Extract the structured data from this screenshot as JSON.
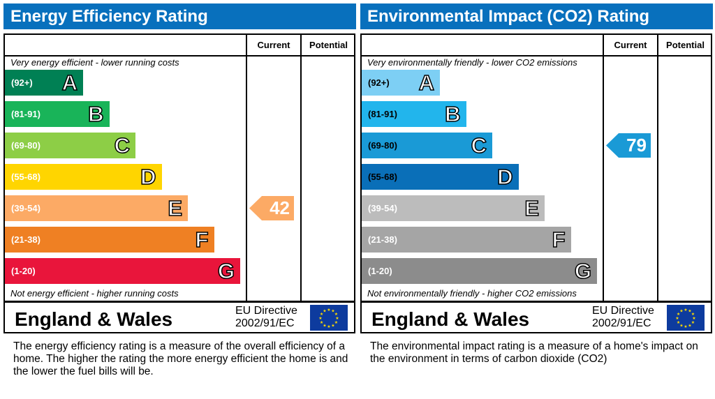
{
  "chart_data": [
    {
      "type": "bar",
      "title": "Energy Efficiency Rating",
      "top_note": "Very energy efficient - lower running costs",
      "bottom_note": "Not energy efficient - higher running costs",
      "columns": [
        "Current",
        "Potential"
      ],
      "bands": [
        {
          "range": "(92+)",
          "letter": "A",
          "color": "#008054"
        },
        {
          "range": "(81-91)",
          "letter": "B",
          "color": "#19b459"
        },
        {
          "range": "(69-80)",
          "letter": "C",
          "color": "#8dce46"
        },
        {
          "range": "(55-68)",
          "letter": "D",
          "color": "#ffd500"
        },
        {
          "range": "(39-54)",
          "letter": "E",
          "color": "#fcaa65"
        },
        {
          "range": "(21-38)",
          "letter": "F",
          "color": "#ef8023"
        },
        {
          "range": "(1-20)",
          "letter": "G",
          "color": "#e9153b"
        }
      ],
      "current": {
        "value": "42",
        "band": "E",
        "color": "#fcaa65"
      },
      "potential": null,
      "region": "England & Wales",
      "directive": [
        "EU Directive",
        "2002/91/EC"
      ],
      "description": "The energy efficiency rating is a measure of the overall efficiency of a home.  The higher the rating the more energy efficient the home is and the lower the fuel bills will be."
    },
    {
      "type": "bar",
      "title": "Environmental Impact (CO2) Rating",
      "top_note": "Very environmentally friendly - lower CO2 emissions",
      "bottom_note": "Not environmentally friendly - higher CO2 emissions",
      "columns": [
        "Current",
        "Potential"
      ],
      "bands": [
        {
          "range": "(92+)",
          "letter": "A",
          "color": "#7dcff4"
        },
        {
          "range": "(81-91)",
          "letter": "B",
          "color": "#22b5ec"
        },
        {
          "range": "(69-80)",
          "letter": "C",
          "color": "#1a9ad6"
        },
        {
          "range": "(55-68)",
          "letter": "D",
          "color": "#0a6fb8"
        },
        {
          "range": "(39-54)",
          "letter": "E",
          "color": "#bcbcbc"
        },
        {
          "range": "(21-38)",
          "letter": "F",
          "color": "#a5a5a5"
        },
        {
          "range": "(1-20)",
          "letter": "G",
          "color": "#8c8c8c"
        }
      ],
      "current": {
        "value": "79",
        "band": "C",
        "color": "#1a9ad6"
      },
      "potential": null,
      "region": "England & Wales",
      "directive": [
        "EU Directive",
        "2002/91/EC"
      ],
      "description": "The environmental impact rating is a measure of a home's impact on the environment in terms of carbon dioxide (CO2)"
    }
  ]
}
